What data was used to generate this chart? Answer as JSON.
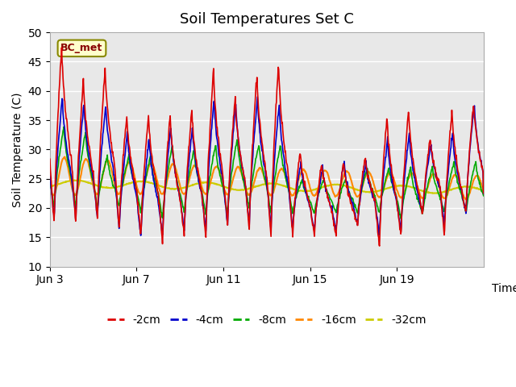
{
  "title": "Soil Temperatures Set C",
  "xlabel": "Time",
  "ylabel": "Soil Temperature (C)",
  "ylim": [
    10,
    50
  ],
  "yticks": [
    10,
    15,
    20,
    25,
    30,
    35,
    40,
    45,
    50
  ],
  "xlim_start": 0,
  "xlim_end": 20,
  "xtick_positions": [
    0,
    4,
    8,
    12,
    16
  ],
  "xtick_labels": [
    "Jun 3",
    "Jun 7",
    "Jun 11",
    "Jun 15",
    "Jun 19"
  ],
  "bg_color": "#e8e8e8",
  "legend_labels": [
    "-2cm",
    "-4cm",
    "-8cm",
    "-16cm",
    "-32cm"
  ],
  "legend_colors": [
    "#dd0000",
    "#0000cc",
    "#00aa00",
    "#ff8800",
    "#cccc00"
  ],
  "annotation_text": "BC_met",
  "annotation_fg": "#880000",
  "annotation_bg": "#ffffcc",
  "annotation_edge": "#888800"
}
